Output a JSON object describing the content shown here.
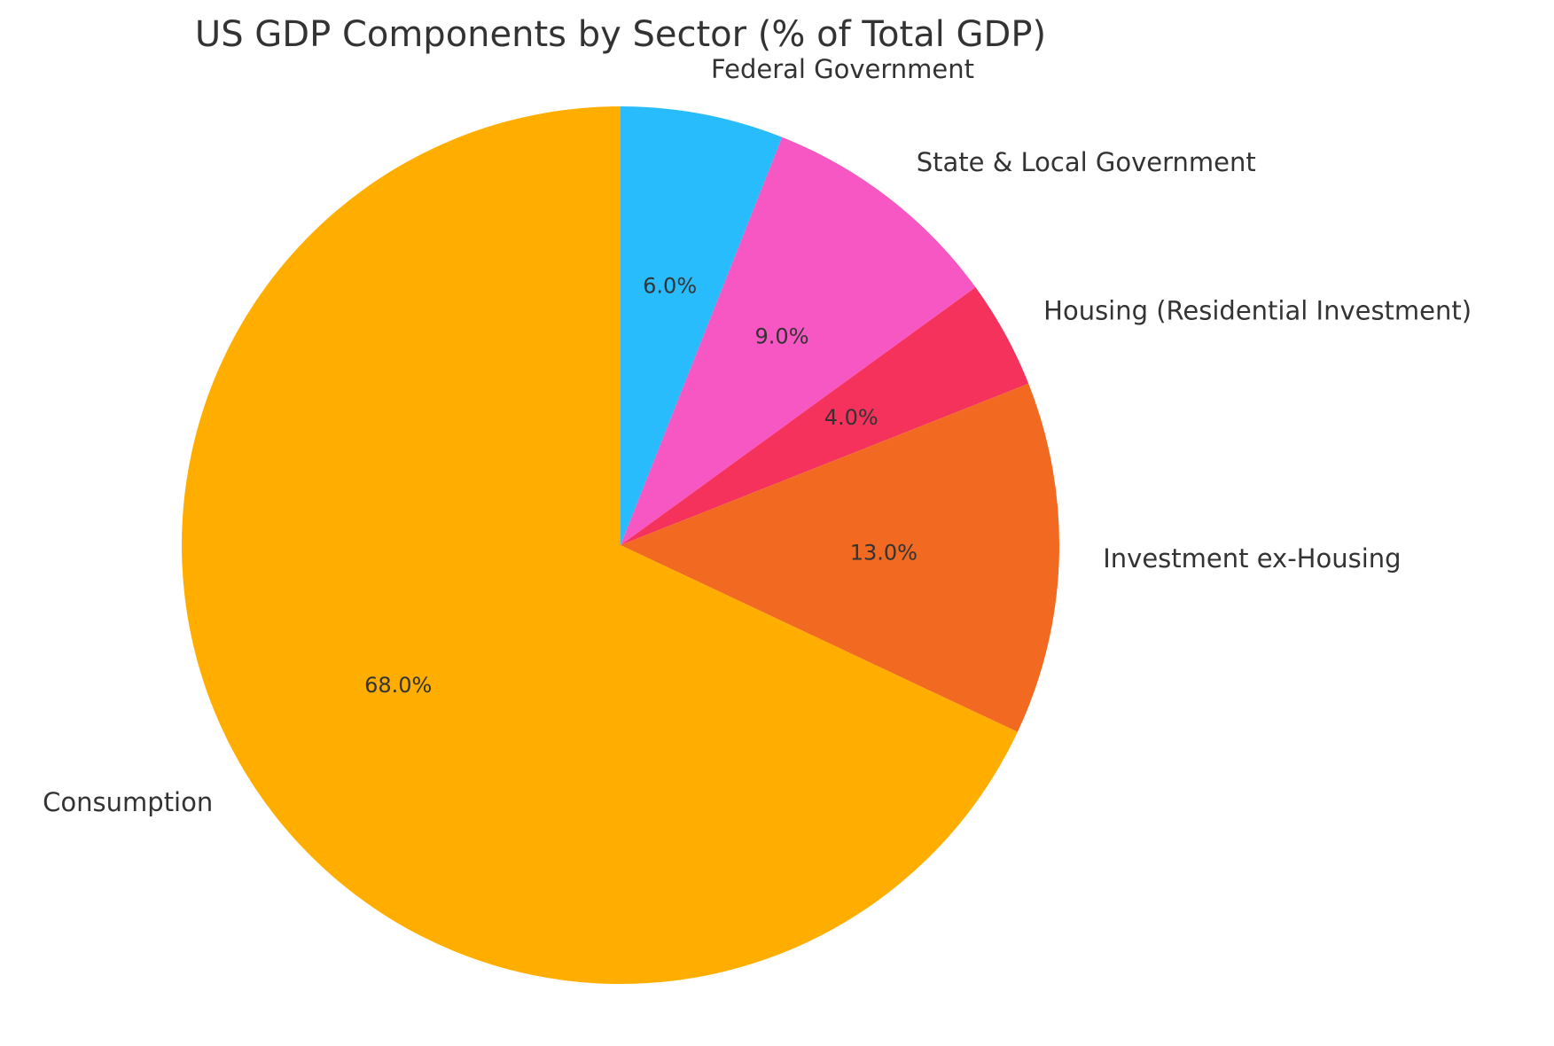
{
  "chart_data": {
    "type": "pie",
    "title": "US GDP Components by Sector (% of Total GDP)",
    "start_angle_deg": 90,
    "direction": "clockwise",
    "slices": [
      {
        "label": "Federal Government",
        "value": 6.0,
        "pct_label": "6.0%",
        "color": "#29BCFC"
      },
      {
        "label": "State & Local Government",
        "value": 9.0,
        "pct_label": "9.0%",
        "color": "#F757C2"
      },
      {
        "label": "Housing (Residential Investment)",
        "value": 4.0,
        "pct_label": "4.0%",
        "color": "#F5325C"
      },
      {
        "label": "Investment ex-Housing",
        "value": 13.0,
        "pct_label": "13.0%",
        "color": "#F26A22"
      },
      {
        "label": "Consumption",
        "value": 68.0,
        "pct_label": "68.0%",
        "color": "#FFAE00"
      }
    ]
  }
}
